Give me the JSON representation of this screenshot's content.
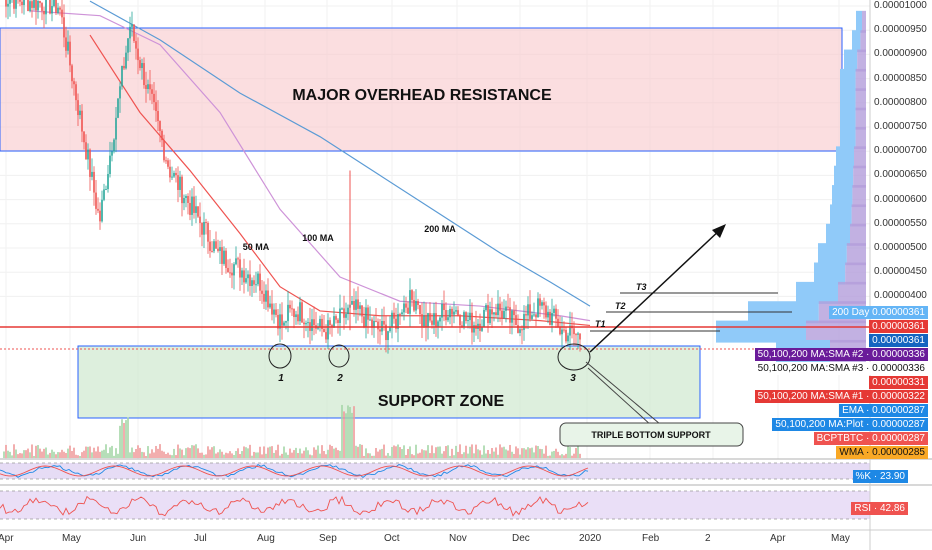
{
  "chart_data": {
    "type": "candlestick",
    "pair": "BCPTBTC",
    "price_axis_ticks": [
      "0.00001000",
      "0.00000950",
      "0.00000900",
      "0.00000850",
      "0.00000800",
      "0.00000750",
      "0.00000700",
      "0.00000650",
      "0.00000600",
      "0.00000550",
      "0.00000500",
      "0.00000450",
      "0.00000400"
    ],
    "time_axis_ticks": [
      "Apr",
      "May",
      "Jun",
      "Jul",
      "Aug",
      "Sep",
      "Oct",
      "Nov",
      "Dec",
      "2020",
      "Feb",
      "2",
      "Apr",
      "May"
    ],
    "zones": [
      {
        "label": "MAJOR OVERHEAD RESISTANCE",
        "from": 7e-06,
        "to": 9.55e-06
      },
      {
        "label": "SUPPORT ZONE",
        "from": 2e-06,
        "to": 3.4e-06
      }
    ],
    "ma_labels": [
      "50 MA",
      "100 MA",
      "200 MA"
    ],
    "targets": [
      "T1",
      "T2",
      "T3"
    ],
    "bottoms": [
      "1",
      "2",
      "3"
    ],
    "callout": "TRIPLE BOTTOM SUPPORT",
    "price_tags": [
      {
        "text": "200 Day · 0.00000361",
        "color": "#5b9bd5"
      },
      {
        "text": "0.00000361",
        "color": "#e53935"
      },
      {
        "text": "0.00000361",
        "color": "#1565c0"
      },
      {
        "text": "50,100,200 MA:SMA #2 · 0.00000336",
        "color": "#6a1b9a"
      },
      {
        "text": "50,100,200 MA:SMA #3 · 0.00000336",
        "color": "#ffffff"
      },
      {
        "text": "0.00000331",
        "color": "#e53935"
      },
      {
        "text": "50,100,200 MA:SMA #1 · 0.00000322",
        "color": "#e53935"
      },
      {
        "text": "EMA · 0.00000287",
        "color": "#1e88e5"
      },
      {
        "text": "50,100,200 MA:Plot · 0.00000287",
        "color": "#1e88e5"
      },
      {
        "text": "BCPTBTC · 0.00000287",
        "color": "#ef5350"
      },
      {
        "text": "WMA · 0.00000285",
        "color": "#f9a825"
      }
    ],
    "indicators": [
      {
        "label": "%K · 23.90",
        "value": 23.9,
        "color": "#1e88e5"
      },
      {
        "label": "RSI · 42.86",
        "value": 42.86,
        "color": "#ef5350"
      }
    ]
  },
  "ui": {
    "resistance_label": "MAJOR OVERHEAD RESISTANCE",
    "support_label": "SUPPORT ZONE",
    "callout": "TRIPLE BOTTOM SUPPORT",
    "ma50": "50 MA",
    "ma100": "100 MA",
    "ma200": "200 MA",
    "t1": "T1",
    "t2": "T2",
    "t3": "T3",
    "b1": "1",
    "b2": "2",
    "b3": "3",
    "tag_200day": "200 Day",
    "tag_200day_val": "0.00000361",
    "tag_red1": "0.00000361",
    "tag_blue1": "0.00000361",
    "tag_sma2": "50,100,200 MA:SMA #2",
    "tag_sma2_val": "0.00000336",
    "tag_sma3": "50,100,200 MA:SMA #3",
    "tag_sma3_val": "0.00000336",
    "tag_331": "0.00000331",
    "tag_sma1": "50,100,200 MA:SMA #1",
    "tag_sma1_val": "0.00000322",
    "tag_ema": "EMA",
    "tag_ema_val": "0.00000287",
    "tag_plot": "50,100,200 MA:Plot",
    "tag_plot_val": "0.00000287",
    "tag_pair": "BCPTBTC",
    "tag_pair_val": "0.00000287",
    "tag_wma": "WMA",
    "tag_wma_val": "0.00000285",
    "k_label": "%K",
    "k_val": "23.90",
    "rsi_label": "RSI",
    "rsi_val": "42.86"
  }
}
